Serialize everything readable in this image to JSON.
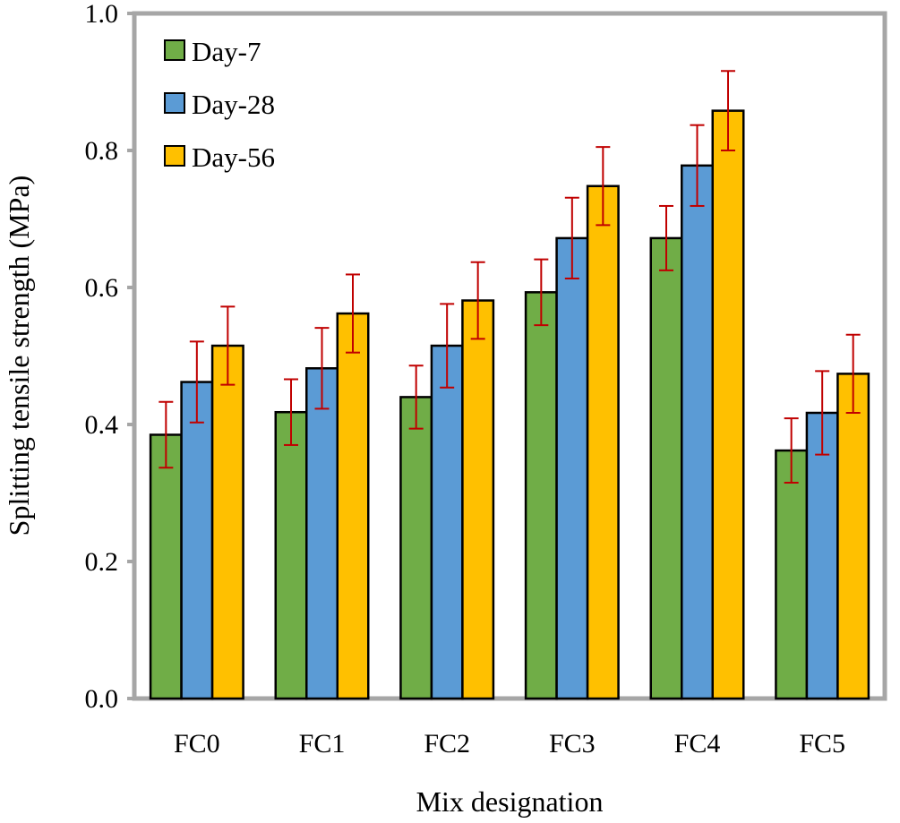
{
  "chart_data": {
    "type": "bar",
    "title": "",
    "xlabel": "Mix designation",
    "ylabel": "Splitting tensile strength (MPa)",
    "ylim": [
      0,
      1.0
    ],
    "yticks": [
      "0.0",
      "0.2",
      "0.4",
      "0.6",
      "0.8",
      "1.0"
    ],
    "categories": [
      "FC0",
      "FC1",
      "FC2",
      "FC3",
      "FC4",
      "FC5"
    ],
    "legend_position": "top-left",
    "grid": false,
    "series": [
      {
        "name": "Day-7",
        "color": "#70ad47",
        "values": [
          0.385,
          0.418,
          0.44,
          0.593,
          0.672,
          0.362
        ],
        "errors": [
          0.048,
          0.048,
          0.046,
          0.048,
          0.047,
          0.047
        ]
      },
      {
        "name": "Day-28",
        "color": "#5b9bd5",
        "values": [
          0.462,
          0.482,
          0.515,
          0.672,
          0.778,
          0.417
        ],
        "errors": [
          0.059,
          0.059,
          0.061,
          0.059,
          0.059,
          0.061
        ]
      },
      {
        "name": "Day-56",
        "color": "#ffc000",
        "values": [
          0.515,
          0.562,
          0.581,
          0.748,
          0.858,
          0.474
        ],
        "errors": [
          0.057,
          0.057,
          0.056,
          0.057,
          0.058,
          0.057
        ]
      }
    ],
    "error_bar_color": "#c00000",
    "frame_color": "#a6a6a6"
  }
}
